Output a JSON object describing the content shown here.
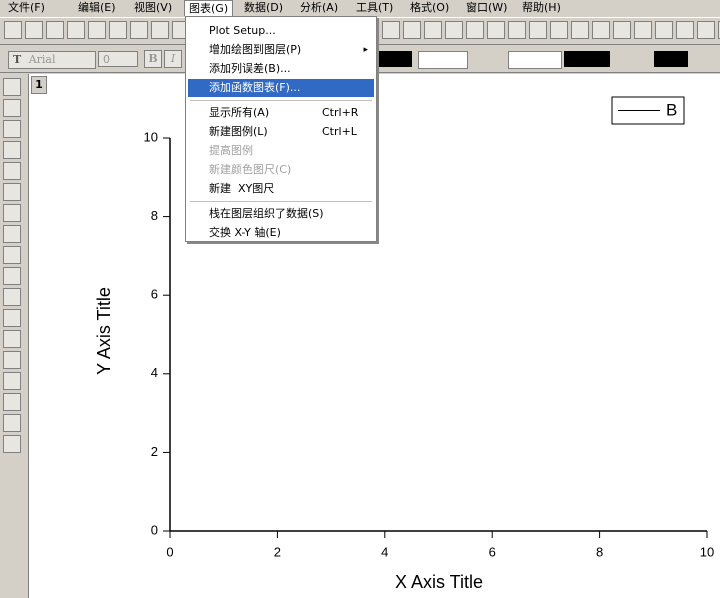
{
  "menu_bar": [
    "文件(F)",
    "编辑(E)",
    "视图(V)",
    "图表(G)",
    "数据(D)",
    "分析(A)",
    "工具(T)",
    "格式(O)",
    "窗口(W)",
    "帮助(H)"
  ],
  "active_menu": 3,
  "format_toolbar": {
    "font": "Arial",
    "size": "0",
    "bold": "B",
    "italic": "I"
  },
  "graph_window": {
    "layer": "1",
    "legend": "B",
    "x_label": "X Axis Title",
    "y_label": "Y Axis Title",
    "xlim": [
      0,
      10
    ],
    "ylim": [
      0,
      10
    ],
    "xticks": [
      0,
      2,
      4,
      6,
      8,
      10
    ],
    "yticks": [
      0,
      2,
      4,
      6,
      8,
      10
    ]
  },
  "dropdown": {
    "items": [
      {
        "label": "Plot Setup..."
      },
      {
        "label": "增加绘图到图层(P)",
        "submenu": true
      },
      {
        "label": "添加列误差(B)..."
      },
      {
        "label": "添加函数图表(F)...",
        "highlighted": true,
        "separator_after": true
      },
      {
        "label": "显示所有(A)",
        "shortcut": "Ctrl+R"
      },
      {
        "label": "新建图例(L)",
        "shortcut": "Ctrl+L"
      },
      {
        "label": "提高图例",
        "disabled": true
      },
      {
        "label": "新建颜色图尺(C)",
        "disabled": true
      },
      {
        "label": "新建  XY图尺",
        "separator_after": true
      },
      {
        "label": "栈在图层组织了数据(S)"
      },
      {
        "label": "交换 X-Y 轴(E)"
      }
    ]
  }
}
